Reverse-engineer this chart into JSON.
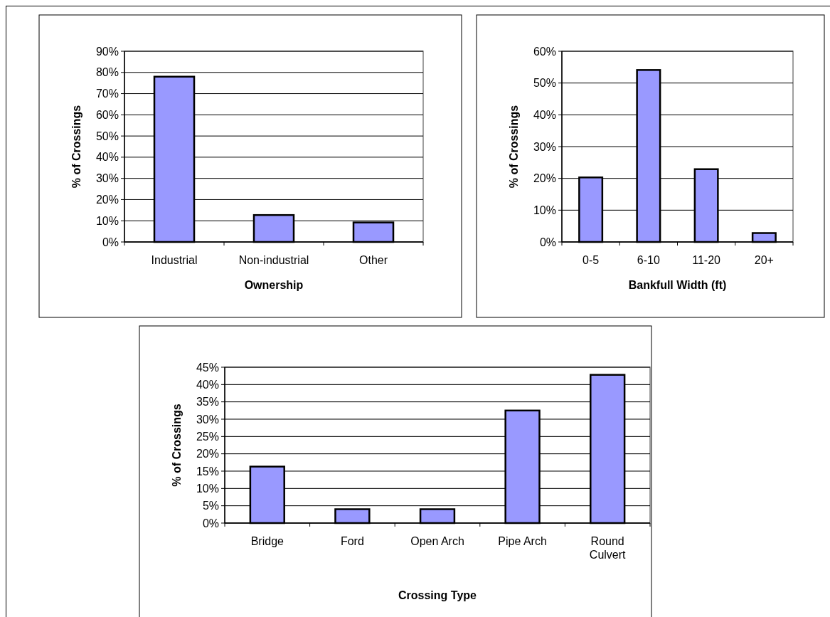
{
  "chart_data": [
    {
      "type": "bar",
      "xlabel": "Ownership",
      "ylabel": "% of Crossings",
      "categories": [
        "Industrial",
        "Non-industrial",
        "Other"
      ],
      "values": [
        78,
        12.7,
        9.2
      ],
      "color": "#9999ff",
      "ylim": [
        0,
        90
      ],
      "yticks": [
        {
          "value": 0,
          "label": "0%"
        },
        {
          "value": 10,
          "label": "10%"
        },
        {
          "value": 20,
          "label": "20%"
        },
        {
          "value": 30,
          "label": "30%"
        },
        {
          "value": 40,
          "label": "40%"
        },
        {
          "value": 50,
          "label": "50%"
        },
        {
          "value": 60,
          "label": "60%"
        },
        {
          "value": 70,
          "label": "70%"
        },
        {
          "value": 80,
          "label": "80%"
        },
        {
          "value": 90,
          "label": "90%"
        }
      ],
      "grid": "y"
    },
    {
      "type": "bar",
      "xlabel": "Bankfull Width (ft)",
      "ylabel": "% of Crossings",
      "categories": [
        "0-5",
        "6-10",
        "11-20",
        "20+"
      ],
      "values": [
        20.3,
        54.1,
        22.9,
        2.8
      ],
      "color": "#9999ff",
      "ylim": [
        0,
        60
      ],
      "yticks": [
        {
          "value": 0,
          "label": "0%"
        },
        {
          "value": 10,
          "label": "10%"
        },
        {
          "value": 20,
          "label": "20%"
        },
        {
          "value": 30,
          "label": "30%"
        },
        {
          "value": 40,
          "label": "40%"
        },
        {
          "value": 50,
          "label": "50%"
        },
        {
          "value": 60,
          "label": "60%"
        }
      ],
      "grid": "y"
    },
    {
      "type": "bar",
      "xlabel": "Crossing Type",
      "ylabel": "% of Crossings",
      "categories": [
        "Bridge",
        "Ford",
        "Open Arch",
        "Pipe Arch",
        "Round Culvert"
      ],
      "values": [
        16.3,
        4.0,
        4.0,
        32.5,
        42.8
      ],
      "color": "#9999ff",
      "ylim": [
        0,
        45
      ],
      "yticks": [
        {
          "value": 0,
          "label": "0%"
        },
        {
          "value": 5,
          "label": "5%"
        },
        {
          "value": 10,
          "label": "10%"
        },
        {
          "value": 15,
          "label": "15%"
        },
        {
          "value": 20,
          "label": "20%"
        },
        {
          "value": 25,
          "label": "25%"
        },
        {
          "value": 30,
          "label": "30%"
        },
        {
          "value": 35,
          "label": "35%"
        },
        {
          "value": 40,
          "label": "40%"
        },
        {
          "value": 45,
          "label": "45%"
        }
      ],
      "grid": "y"
    }
  ]
}
